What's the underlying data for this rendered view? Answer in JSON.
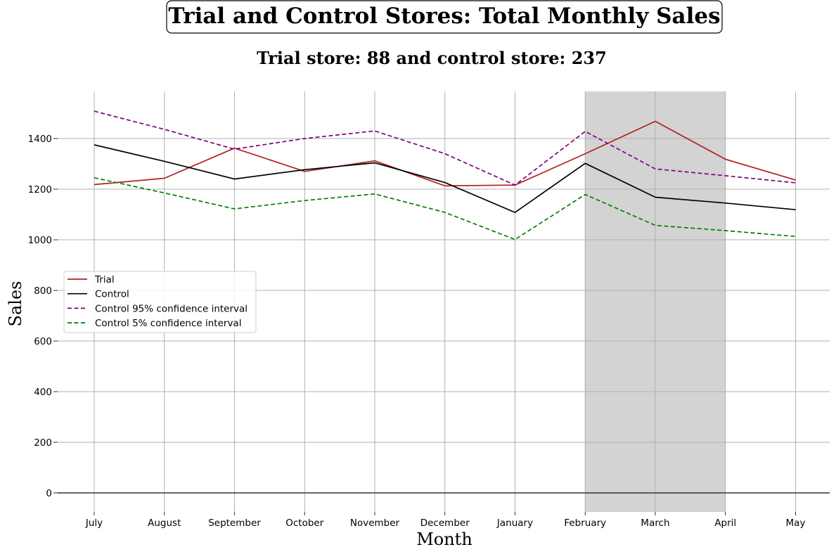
{
  "chart_data": {
    "type": "line",
    "title": "Trial and Control Stores: Total Monthly Sales",
    "subtitle": "Trial store: 88 and control store: 237",
    "xlabel": "Month",
    "ylabel": "Sales",
    "categories": [
      "July",
      "August",
      "September",
      "October",
      "November",
      "December",
      "January",
      "February",
      "March",
      "April",
      "May"
    ],
    "ylim": [
      -75,
      1580
    ],
    "yticks": [
      0,
      200,
      400,
      600,
      800,
      1000,
      1200,
      1400
    ],
    "grid": true,
    "legend_position": "center-left",
    "highlight_span": {
      "from": "February",
      "to": "April",
      "color": "#d3d3d3"
    },
    "series": [
      {
        "name": "Trial",
        "color": "#b22222",
        "dash": "solid",
        "values": [
          1218,
          1243,
          1362,
          1270,
          1312,
          1213,
          1216,
          1340,
          1468,
          1318,
          1236
        ]
      },
      {
        "name": "Control",
        "color": "#000000",
        "dash": "solid",
        "values": [
          1375,
          1310,
          1240,
          1277,
          1304,
          1226,
          1108,
          1302,
          1168,
          1145,
          1119
        ]
      },
      {
        "name": "Control 95% confidence interval",
        "color": "#800080",
        "dash": "dashed",
        "values": [
          1508,
          1436,
          1358,
          1400,
          1430,
          1340,
          1216,
          1428,
          1280,
          1253,
          1225
        ]
      },
      {
        "name": "Control 5% confidence interval",
        "color": "#008000",
        "dash": "dashed",
        "values": [
          1245,
          1185,
          1122,
          1155,
          1181,
          1108,
          1001,
          1179,
          1057,
          1036,
          1013
        ]
      }
    ]
  }
}
